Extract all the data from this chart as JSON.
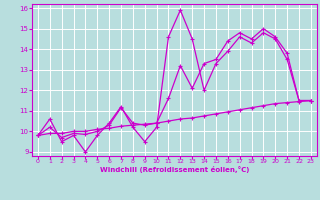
{
  "xlabel": "Windchill (Refroidissement éolien,°C)",
  "bg_color": "#b8dede",
  "grid_color": "#ffffff",
  "line_color": "#cc00cc",
  "xlim": [
    -0.5,
    23.5
  ],
  "ylim": [
    8.8,
    16.2
  ],
  "xticks": [
    0,
    1,
    2,
    3,
    4,
    5,
    6,
    7,
    8,
    9,
    10,
    11,
    12,
    13,
    14,
    15,
    16,
    17,
    18,
    19,
    20,
    21,
    22,
    23
  ],
  "yticks": [
    9,
    10,
    11,
    12,
    13,
    14,
    15,
    16
  ],
  "s1_x": [
    0,
    1,
    2,
    3,
    4,
    5,
    6,
    7,
    8,
    9,
    10,
    11,
    12,
    13,
    14,
    15,
    16,
    17,
    18,
    19,
    20,
    21,
    22,
    23
  ],
  "s1_y": [
    9.8,
    10.6,
    9.5,
    9.8,
    9.0,
    9.8,
    10.4,
    11.2,
    10.2,
    9.5,
    10.2,
    14.6,
    15.9,
    14.5,
    12.0,
    13.3,
    13.9,
    14.6,
    14.3,
    14.8,
    14.5,
    13.5,
    11.5,
    11.5
  ],
  "s2_x": [
    0,
    1,
    2,
    3,
    4,
    5,
    6,
    7,
    8,
    9,
    10,
    11,
    12,
    13,
    14,
    15,
    16,
    17,
    18,
    19,
    20,
    21,
    22,
    23
  ],
  "s2_y": [
    9.8,
    9.9,
    9.9,
    10.0,
    10.0,
    10.1,
    10.15,
    10.25,
    10.3,
    10.35,
    10.4,
    10.5,
    10.6,
    10.65,
    10.75,
    10.85,
    10.95,
    11.05,
    11.15,
    11.25,
    11.35,
    11.4,
    11.45,
    11.5
  ],
  "s3_x": [
    0,
    1,
    2,
    3,
    4,
    5,
    6,
    7,
    8,
    9,
    10,
    11,
    12,
    13,
    14,
    15,
    16,
    17,
    18,
    19,
    20,
    21,
    22,
    23
  ],
  "s3_y": [
    9.8,
    10.2,
    9.7,
    9.9,
    9.85,
    10.0,
    10.3,
    11.15,
    10.4,
    10.3,
    10.4,
    11.6,
    13.2,
    12.1,
    13.3,
    13.5,
    14.4,
    14.8,
    14.5,
    15.0,
    14.6,
    13.8,
    11.5,
    11.5
  ]
}
